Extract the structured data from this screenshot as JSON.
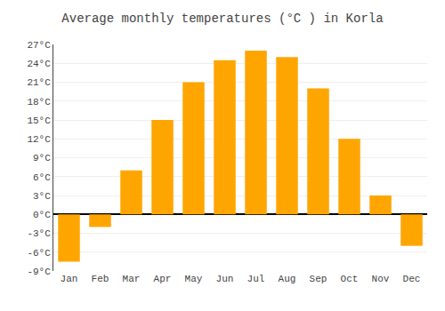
{
  "chart_data": {
    "type": "bar",
    "title": "Average monthly temperatures (°C ) in Korla",
    "categories": [
      "Jan",
      "Feb",
      "Mar",
      "Apr",
      "May",
      "Jun",
      "Jul",
      "Aug",
      "Sep",
      "Oct",
      "Nov",
      "Dec"
    ],
    "values": [
      -7.5,
      -2.0,
      7.0,
      15.0,
      21.0,
      24.5,
      26.0,
      25.0,
      20.0,
      12.0,
      3.0,
      -5.0
    ],
    "color": "#FFA500",
    "ylim": [
      -9,
      27
    ],
    "yticks": [
      {
        "value": -9,
        "label": "-9°C"
      },
      {
        "value": -6,
        "label": "-6°C"
      },
      {
        "value": -3,
        "label": "-3°C"
      },
      {
        "value": 0,
        "label": "0°C"
      },
      {
        "value": 3,
        "label": "3°C"
      },
      {
        "value": 6,
        "label": "6°C"
      },
      {
        "value": 9,
        "label": "9°C"
      },
      {
        "value": 12,
        "label": "12°C"
      },
      {
        "value": 15,
        "label": "15°C"
      },
      {
        "value": 18,
        "label": "18°C"
      },
      {
        "value": 21,
        "label": "21°C"
      },
      {
        "value": 24,
        "label": "24°C"
      },
      {
        "value": 27,
        "label": "27°C"
      }
    ],
    "grid": true
  }
}
